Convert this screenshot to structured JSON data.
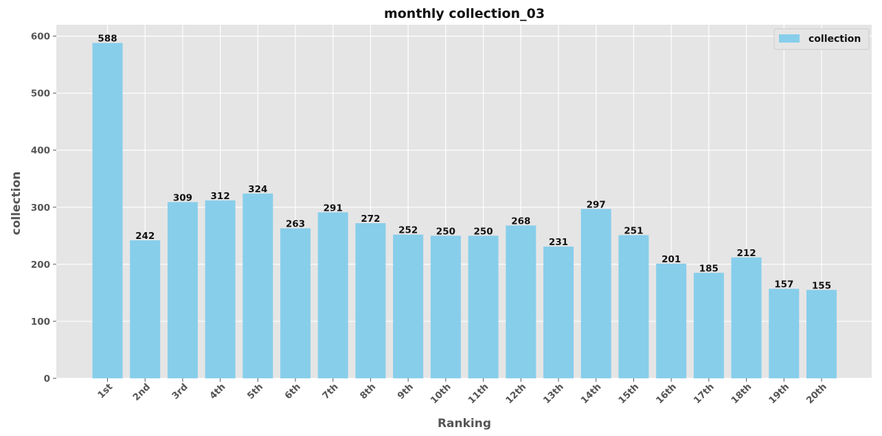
{
  "chart_data": {
    "type": "bar",
    "title": "monthly collection_03",
    "xlabel": "Ranking",
    "ylabel": "collection",
    "categories": [
      "1st",
      "2nd",
      "3rd",
      "4th",
      "5th",
      "6th",
      "7th",
      "8th",
      "9th",
      "10th",
      "11th",
      "12th",
      "13th",
      "14th",
      "15th",
      "16th",
      "17th",
      "18th",
      "19th",
      "20th"
    ],
    "series": [
      {
        "name": "collection",
        "values": [
          588,
          242,
          309,
          312,
          324,
          263,
          291,
          272,
          252,
          250,
          250,
          268,
          231,
          297,
          251,
          201,
          185,
          212,
          157,
          155
        ],
        "color": "#87CEEB"
      }
    ],
    "ylim": [
      0,
      620
    ],
    "yticks": [
      0,
      100,
      200,
      300,
      400,
      500,
      600
    ],
    "grid": true,
    "legend_position": "top-right",
    "plot_background": "#E5E5E5",
    "grid_color": "#FFFFFF"
  }
}
